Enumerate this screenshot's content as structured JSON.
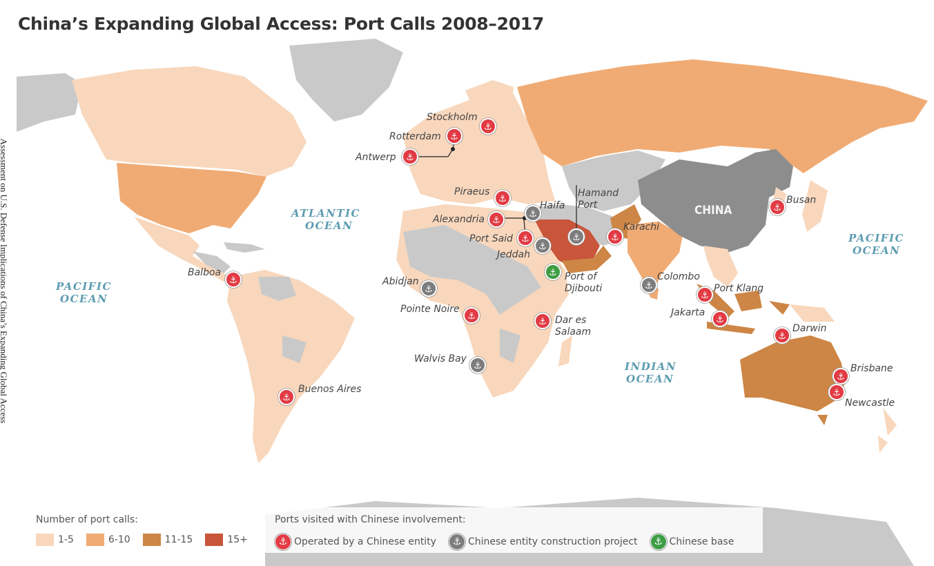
{
  "side_caption": "Assessment on U.S. Defense Implications of China’s Expanding Global Access",
  "title": "China’s Expanding Global Access: Port Calls 2008–2017",
  "colors": {
    "ocean": "#ffffff",
    "no_calls": "#c9c9c9",
    "calls_1_5": "#f8d7bc",
    "calls_6_10": "#f0ab74",
    "calls_11_15": "#cd8645",
    "calls_15_plus": "#c9553a",
    "china": "#8d8d8d",
    "operated_pin": "#e23b44",
    "construction_pin": "#7d7d7d",
    "base_pin": "#3f9e45",
    "ocean_label": "#5b9bb0"
  },
  "map_labels": {
    "china": "CHINA",
    "oceans": [
      "ATLANTIC OCEAN",
      "PACIFIC OCEAN",
      "PACIFIC OCEAN",
      "INDIAN OCEAN"
    ]
  },
  "ports": [
    {
      "name": "Stockholm",
      "type": "operated"
    },
    {
      "name": "Rotterdam",
      "type": "operated"
    },
    {
      "name": "Antwerp",
      "type": "operated"
    },
    {
      "name": "Piraeus",
      "type": "operated"
    },
    {
      "name": "Haifa",
      "type": "construction"
    },
    {
      "name": "Alexandria",
      "type": "operated"
    },
    {
      "name": "Port Said",
      "type": "operated"
    },
    {
      "name": "Jeddah",
      "type": "construction"
    },
    {
      "name": "Hamand Port",
      "type": "construction"
    },
    {
      "name": "Karachi",
      "type": "operated"
    },
    {
      "name": "Port of Djibouti",
      "type": "base"
    },
    {
      "name": "Colombo",
      "type": "construction"
    },
    {
      "name": "Port Klang",
      "type": "operated"
    },
    {
      "name": "Jakarta",
      "type": "operated"
    },
    {
      "name": "Darwin",
      "type": "operated"
    },
    {
      "name": "Brisbane",
      "type": "operated"
    },
    {
      "name": "Newcastle",
      "type": "operated"
    },
    {
      "name": "Busan",
      "type": "operated"
    },
    {
      "name": "Balboa",
      "type": "operated"
    },
    {
      "name": "Abidjan",
      "type": "construction"
    },
    {
      "name": "Pointe Noire",
      "type": "operated"
    },
    {
      "name": "Dar es Salaam",
      "type": "operated"
    },
    {
      "name": "Walvis Bay",
      "type": "construction"
    },
    {
      "name": "Buenos Aires",
      "type": "operated"
    }
  ],
  "legend": {
    "calls_title": "Number of port calls:",
    "calls": [
      "1-5",
      "6-10",
      "11-15",
      "15+"
    ],
    "involvement_title": "Ports visited with Chinese involvement:",
    "operated": "Operated by a Chinese entity",
    "construction": "Chinese entity construction project",
    "base": "Chinese base",
    "pin_glyph": "anchor-icon"
  }
}
